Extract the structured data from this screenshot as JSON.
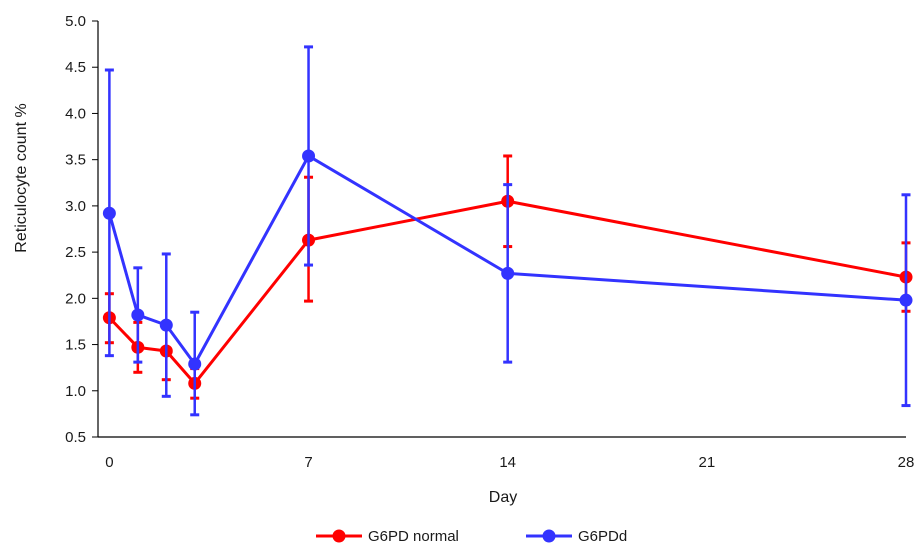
{
  "chart_data": {
    "type": "line",
    "title": "",
    "xlabel": "Day",
    "ylabel": "Reticulocyte count %",
    "xlim": [
      -0.4,
      28
    ],
    "ylim": [
      0.5,
      5.0
    ],
    "x_ticks": [
      0,
      7,
      14,
      21,
      28
    ],
    "x_tick_labels": [
      "0",
      "7",
      "14",
      "21",
      "28"
    ],
    "y_ticks": [
      0.5,
      1.0,
      1.5,
      2.0,
      2.5,
      3.0,
      3.5,
      4.0,
      4.5,
      5.0
    ],
    "y_tick_labels": [
      "0.5",
      "1.0",
      "1.5",
      "2.0",
      "2.5",
      "3.0",
      "3.5",
      "4.0",
      "4.5",
      "5.0"
    ],
    "grid": false,
    "legend_position": "bottom",
    "x": [
      0,
      1,
      2,
      3,
      7,
      14,
      28
    ],
    "series": [
      {
        "name": "G6PD normal",
        "color": "#ff0000",
        "values": [
          1.79,
          1.47,
          1.43,
          1.08,
          2.63,
          3.05,
          2.23
        ],
        "err_low": [
          1.52,
          1.2,
          1.12,
          0.92,
          1.97,
          2.56,
          1.86
        ],
        "err_high": [
          2.05,
          1.74,
          1.74,
          1.24,
          3.31,
          3.54,
          2.6
        ]
      },
      {
        "name": "G6PDd",
        "color": "#3333ff",
        "values": [
          2.92,
          1.82,
          1.71,
          1.29,
          3.54,
          2.27,
          1.98
        ],
        "err_low": [
          1.38,
          1.31,
          0.94,
          0.74,
          2.36,
          1.31,
          0.84
        ],
        "err_high": [
          4.47,
          2.33,
          2.48,
          1.85,
          4.72,
          3.23,
          3.12
        ]
      }
    ]
  }
}
